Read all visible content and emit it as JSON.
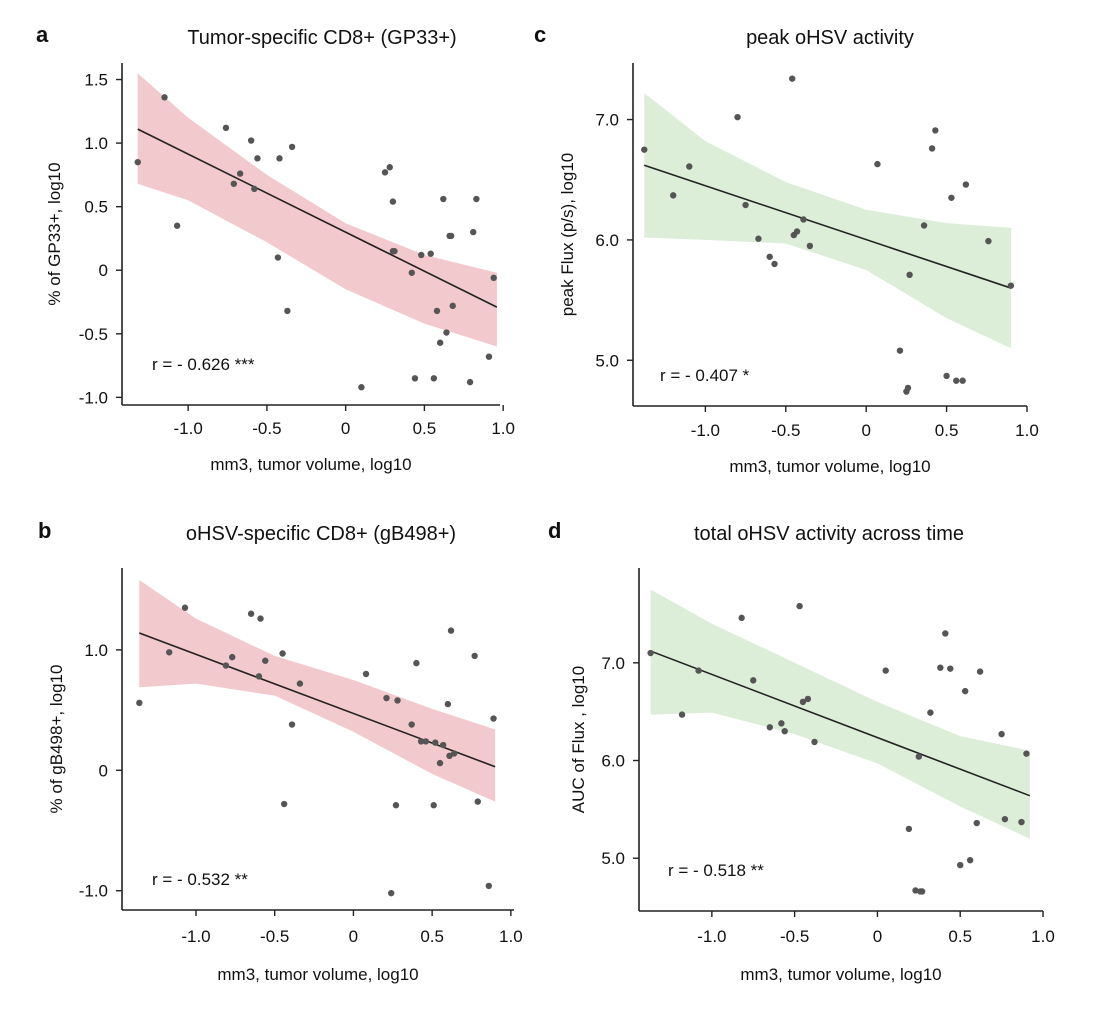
{
  "chart_data": [
    {
      "type": "scatter",
      "panel": "a",
      "title": "Tumor-specific CD8+ (GP33+)",
      "xlabel": "mm3, tumor volume, log10",
      "ylabel": "% of GP33+, log10",
      "annotation": "r = - 0.626 ***",
      "xticks": [
        -1.0,
        -0.5,
        0,
        0.5,
        1.0
      ],
      "xtick_labels": [
        "-1.0",
        "-0.5",
        "0",
        "0.5",
        "1.0"
      ],
      "yticks": [
        1.5,
        1.0,
        0.5,
        0,
        -0.5,
        -1.0
      ],
      "ytick_labels": [
        "1.5",
        "1.0",
        "0.5",
        "0",
        "-0.5",
        "-1.0"
      ],
      "xlim": [
        -1.42,
        0.98
      ],
      "ylim": [
        -1.06,
        1.63
      ],
      "band_color": "#f2c9cc",
      "point_color": "#555555",
      "fit": {
        "x": [
          -1.32,
          0.96
        ],
        "y": [
          1.11,
          -0.29
        ]
      },
      "band": {
        "x": [
          -1.32,
          -1.0,
          -0.5,
          0.0,
          0.5,
          0.96
        ],
        "upper": [
          1.55,
          1.2,
          0.75,
          0.37,
          0.12,
          -0.02
        ],
        "lower": [
          0.68,
          0.55,
          0.22,
          -0.15,
          -0.42,
          -0.6
        ]
      },
      "points": {
        "x": [
          -1.32,
          -1.15,
          -1.07,
          -0.76,
          -0.71,
          -0.67,
          -0.6,
          -0.58,
          -0.56,
          -0.43,
          -0.42,
          -0.37,
          -0.34,
          0.1,
          0.25,
          0.28,
          0.3,
          0.3,
          0.31,
          0.42,
          0.44,
          0.48,
          0.54,
          0.56,
          0.58,
          0.6,
          0.62,
          0.64,
          0.66,
          0.67,
          0.68,
          0.79,
          0.81,
          0.83,
          0.91,
          0.94
        ],
        "y": [
          0.85,
          1.36,
          0.35,
          1.12,
          0.68,
          0.76,
          1.02,
          0.64,
          0.88,
          0.1,
          0.88,
          -0.32,
          0.97,
          -0.92,
          0.77,
          0.81,
          0.54,
          0.15,
          0.15,
          -0.02,
          -0.85,
          0.12,
          0.13,
          -0.85,
          -0.32,
          -0.57,
          0.56,
          -0.49,
          0.27,
          0.27,
          -0.28,
          -0.88,
          0.3,
          0.56,
          -0.68,
          -0.06
        ]
      }
    },
    {
      "type": "scatter",
      "panel": "c",
      "title": "peak oHSV activity",
      "xlabel": "mm3, tumor volume, log10",
      "ylabel": "peak Flux (p/s), log10",
      "annotation": "r = - 0.407 *",
      "xticks": [
        -1.0,
        -0.5,
        0,
        0.5,
        1.0
      ],
      "xtick_labels": [
        "-1.0",
        "-0.5",
        "0",
        "0.5",
        "1.0"
      ],
      "yticks": [
        7.0,
        6.0,
        5.0
      ],
      "ytick_labels": [
        "7.0",
        "6.0",
        "5.0"
      ],
      "xlim": [
        -1.45,
        1.0
      ],
      "ylim": [
        4.62,
        7.47
      ],
      "band_color": "#dcedd8",
      "point_color": "#555555",
      "fit": {
        "x": [
          -1.38,
          0.9
        ],
        "y": [
          6.62,
          5.6
        ]
      },
      "band": {
        "x": [
          -1.38,
          -1.0,
          -0.5,
          0.0,
          0.5,
          0.9
        ],
        "upper": [
          7.22,
          6.82,
          6.48,
          6.25,
          6.14,
          6.1
        ],
        "lower": [
          6.02,
          6.0,
          5.97,
          5.75,
          5.35,
          5.1
        ]
      },
      "points": {
        "x": [
          -1.38,
          -1.2,
          -1.1,
          -0.8,
          -0.75,
          -0.67,
          -0.6,
          -0.57,
          -0.46,
          -0.45,
          -0.43,
          -0.39,
          -0.35,
          0.07,
          0.21,
          0.25,
          0.26,
          0.27,
          0.36,
          0.41,
          0.43,
          0.5,
          0.53,
          0.56,
          0.6,
          0.62,
          0.76,
          0.9
        ],
        "y": [
          6.75,
          6.37,
          6.61,
          7.02,
          6.29,
          6.01,
          5.86,
          5.8,
          7.34,
          6.04,
          6.07,
          6.17,
          5.95,
          6.63,
          5.08,
          4.74,
          4.77,
          5.71,
          6.12,
          6.76,
          6.91,
          4.87,
          6.35,
          4.83,
          4.83,
          6.46,
          5.99,
          5.62
        ]
      }
    },
    {
      "type": "scatter",
      "panel": "b",
      "title": "oHSV-specific CD8+ (gB498+)",
      "xlabel": "mm3, tumor volume, log10",
      "ylabel": "% of gB498+, log10",
      "annotation": "r = - 0.532 **",
      "xticks": [
        -1.0,
        -0.5,
        0,
        0.5,
        1.0
      ],
      "xtick_labels": [
        "-1.0",
        "-0.5",
        "0",
        "0.5",
        "1.0"
      ],
      "yticks": [
        1.0,
        0,
        -1.0
      ],
      "ytick_labels": [
        "1.0",
        "0",
        "-1.0"
      ],
      "xlim": [
        -1.47,
        1.02
      ],
      "ylim": [
        -1.16,
        1.68
      ],
      "band_color": "#f2c9cc",
      "point_color": "#555555",
      "fit": {
        "x": [
          -1.36,
          0.9
        ],
        "y": [
          1.14,
          0.03
        ]
      },
      "band": {
        "x": [
          -1.36,
          -1.0,
          -0.5,
          0.0,
          0.5,
          0.9
        ],
        "upper": [
          1.58,
          1.26,
          0.95,
          0.75,
          0.51,
          0.34
        ],
        "lower": [
          0.69,
          0.72,
          0.62,
          0.32,
          -0.03,
          -0.26
        ]
      },
      "points": {
        "x": [
          -1.36,
          -1.17,
          -1.07,
          -0.81,
          -0.77,
          -0.65,
          -0.6,
          -0.59,
          -0.56,
          -0.45,
          -0.44,
          -0.39,
          -0.34,
          0.08,
          0.21,
          0.24,
          0.27,
          0.28,
          0.37,
          0.4,
          0.43,
          0.46,
          0.51,
          0.52,
          0.55,
          0.57,
          0.6,
          0.61,
          0.62,
          0.64,
          0.77,
          0.79,
          0.86,
          0.89
        ],
        "y": [
          0.56,
          0.98,
          1.35,
          0.87,
          0.94,
          1.3,
          0.78,
          1.26,
          0.91,
          0.97,
          -0.28,
          0.38,
          0.72,
          0.8,
          0.6,
          -1.02,
          -0.29,
          0.58,
          0.38,
          0.89,
          0.24,
          0.24,
          -0.29,
          0.23,
          0.06,
          0.21,
          0.55,
          0.12,
          1.16,
          0.14,
          0.95,
          -0.26,
          -0.96,
          0.43
        ]
      }
    },
    {
      "type": "scatter",
      "panel": "d",
      "title": "total oHSV activity across time",
      "xlabel": "mm3, tumor volume, log10",
      "ylabel": "AUC of Flux , log10",
      "annotation": "r = - 0.518 **",
      "xticks": [
        -1.0,
        -0.5,
        0,
        0.5,
        1.0
      ],
      "xtick_labels": [
        "-1.0",
        "-0.5",
        "0",
        "0.5",
        "1.0"
      ],
      "yticks": [
        7.0,
        6.0,
        5.0
      ],
      "ytick_labels": [
        "7.0",
        "6.0",
        "5.0"
      ],
      "xlim": [
        -1.44,
        1.0
      ],
      "ylim": [
        4.46,
        7.97
      ],
      "band_color": "#dcedd8",
      "point_color": "#555555",
      "fit": {
        "x": [
          -1.37,
          0.92
        ],
        "y": [
          7.12,
          5.64
        ]
      },
      "band": {
        "x": [
          -1.37,
          -1.0,
          -0.5,
          0.0,
          0.5,
          0.92
        ],
        "upper": [
          7.75,
          7.4,
          7.0,
          6.6,
          6.25,
          6.1
        ],
        "lower": [
          6.47,
          6.49,
          6.27,
          5.97,
          5.53,
          5.2
        ]
      },
      "points": {
        "x": [
          -1.37,
          -1.18,
          -1.08,
          -0.82,
          -0.75,
          -0.65,
          -0.58,
          -0.56,
          -0.47,
          -0.45,
          -0.42,
          -0.38,
          0.05,
          0.19,
          0.23,
          0.25,
          0.26,
          0.27,
          0.32,
          0.38,
          0.41,
          0.44,
          0.5,
          0.53,
          0.56,
          0.6,
          0.62,
          0.75,
          0.77,
          0.87,
          0.9
        ],
        "y": [
          7.1,
          6.47,
          6.92,
          7.46,
          6.82,
          6.34,
          6.38,
          6.3,
          7.58,
          6.6,
          6.63,
          6.19,
          6.92,
          5.3,
          4.67,
          6.04,
          4.66,
          4.66,
          6.49,
          6.95,
          7.3,
          6.94,
          4.93,
          6.71,
          4.98,
          5.36,
          6.91,
          6.27,
          5.4,
          5.37,
          6.07
        ]
      }
    }
  ]
}
